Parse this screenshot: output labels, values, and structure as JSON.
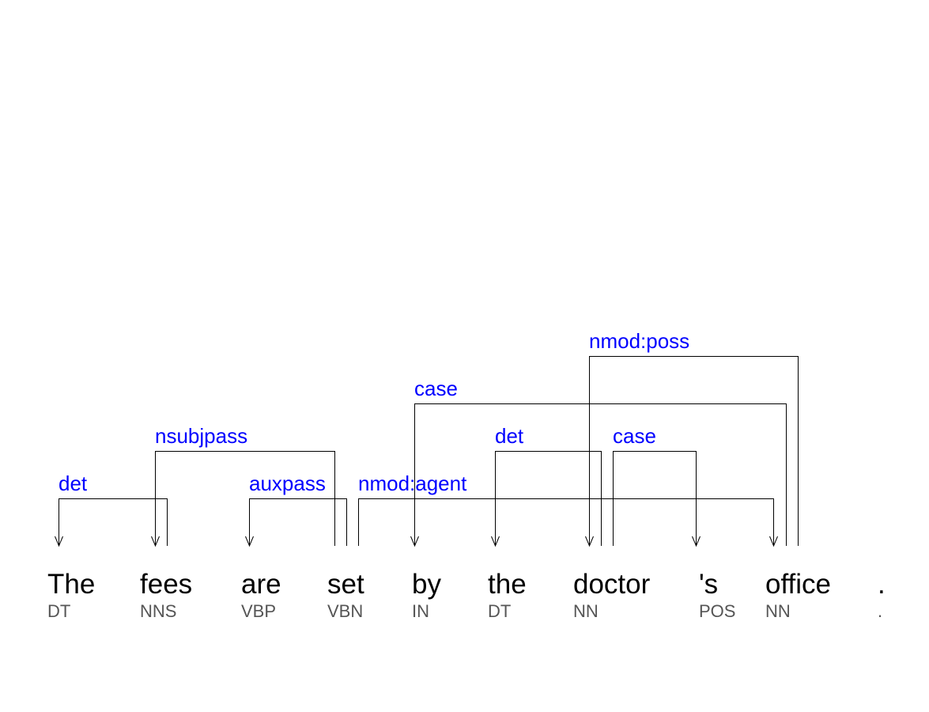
{
  "tokens": [
    {
      "word": "The",
      "tag": "DT"
    },
    {
      "word": "fees",
      "tag": "NNS"
    },
    {
      "word": "are",
      "tag": "VBP"
    },
    {
      "word": "set",
      "tag": "VBN"
    },
    {
      "word": "by",
      "tag": "IN"
    },
    {
      "word": "the",
      "tag": "DT"
    },
    {
      "word": "doctor",
      "tag": "NN"
    },
    {
      "word": "'s",
      "tag": "POS"
    },
    {
      "word": "office",
      "tag": "NN"
    },
    {
      "word": ".",
      "tag": "."
    }
  ],
  "arcs": [
    {
      "label": "det",
      "head": 1,
      "dep": 0
    },
    {
      "label": "nsubjpass",
      "head": 3,
      "dep": 1
    },
    {
      "label": "auxpass",
      "head": 3,
      "dep": 2
    },
    {
      "label": "nmod:agent",
      "head": 3,
      "dep": 8
    },
    {
      "label": "case",
      "head": 8,
      "dep": 4
    },
    {
      "label": "det",
      "head": 6,
      "dep": 5
    },
    {
      "label": "nmod:poss",
      "head": 8,
      "dep": 6
    },
    {
      "label": "case",
      "head": 6,
      "dep": 7
    }
  ],
  "colors": {
    "label": "#0000ff",
    "word": "#000000",
    "tag": "#555555"
  }
}
